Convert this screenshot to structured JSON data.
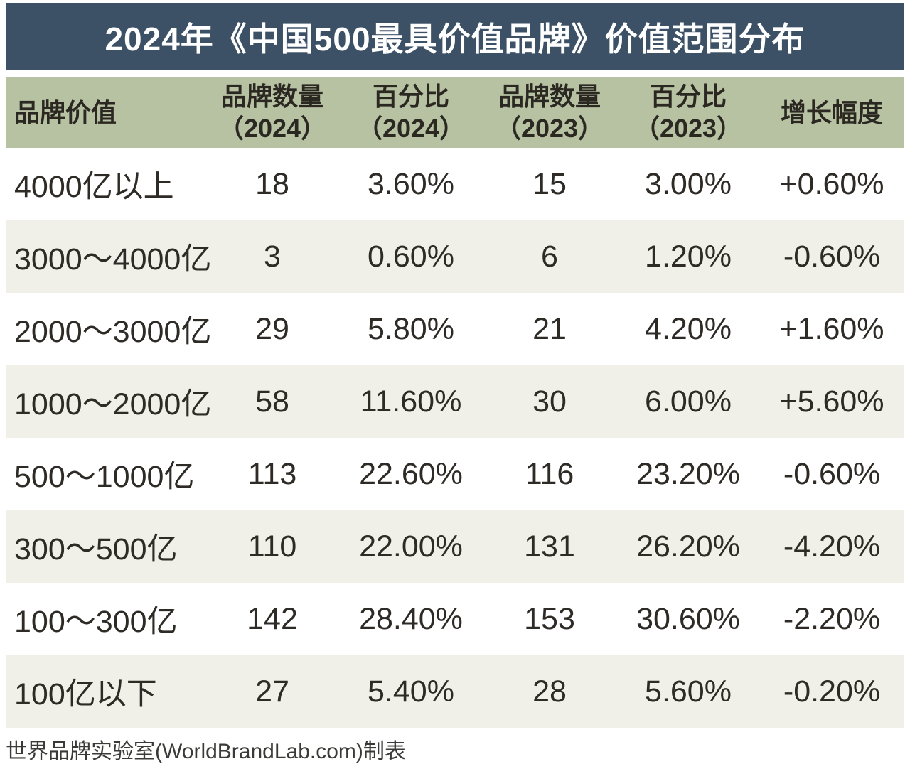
{
  "title": "2024年《中国500最具价值品牌》价值范围分布",
  "table": {
    "columns": [
      {
        "label": "品牌价值",
        "sublabel": ""
      },
      {
        "label": "品牌数量",
        "sublabel": "（2024）"
      },
      {
        "label": "百分比",
        "sublabel": "（2024）"
      },
      {
        "label": "品牌数量",
        "sublabel": "（2023）"
      },
      {
        "label": "百分比",
        "sublabel": "（2023）"
      },
      {
        "label": "增长幅度",
        "sublabel": ""
      }
    ],
    "rows": [
      {
        "range": "4000亿以上",
        "count_2024": "18",
        "pct_2024": "3.60%",
        "count_2023": "15",
        "pct_2023": "3.00%",
        "growth": "+0.60%"
      },
      {
        "range": "3000～4000亿",
        "count_2024": "3",
        "pct_2024": "0.60%",
        "count_2023": "6",
        "pct_2023": "1.20%",
        "growth": "-0.60%"
      },
      {
        "range": "2000～3000亿",
        "count_2024": "29",
        "pct_2024": "5.80%",
        "count_2023": "21",
        "pct_2023": "4.20%",
        "growth": "+1.60%"
      },
      {
        "range": "1000～2000亿",
        "count_2024": "58",
        "pct_2024": "11.60%",
        "count_2023": "30",
        "pct_2023": "6.00%",
        "growth": "+5.60%"
      },
      {
        "range": "500～1000亿",
        "count_2024": "113",
        "pct_2024": "22.60%",
        "count_2023": "116",
        "pct_2023": "23.20%",
        "growth": "-0.60%"
      },
      {
        "range": "300～500亿",
        "count_2024": "110",
        "pct_2024": "22.00%",
        "count_2023": "131",
        "pct_2023": "26.20%",
        "growth": "-4.20%"
      },
      {
        "range": "100～300亿",
        "count_2024": "142",
        "pct_2024": "28.40%",
        "count_2023": "153",
        "pct_2023": "30.60%",
        "growth": "-2.20%"
      },
      {
        "range": "100亿以下",
        "count_2024": "27",
        "pct_2024": "5.40%",
        "count_2023": "28",
        "pct_2023": "5.60%",
        "growth": "-0.20%"
      }
    ]
  },
  "footer": {
    "credit": "世界品牌实验室(WorldBrandLab.com)制表"
  },
  "colors": {
    "title_bg": "#3d5166",
    "title_text": "#ffffff",
    "header_bg": "#b7c2a3",
    "row_bg": "#ffffff",
    "row_alt_bg": "#f0f0e9",
    "text": "#2e2a25"
  },
  "chart_data": {
    "type": "table",
    "title": "2024年《中国500最具价值品牌》价值范围分布",
    "columns": [
      "品牌价值",
      "品牌数量（2024）",
      "百分比（2024）",
      "品牌数量（2023）",
      "百分比（2023）",
      "增长幅度"
    ],
    "rows": [
      [
        "4000亿以上",
        18,
        "3.60%",
        15,
        "3.00%",
        "+0.60%"
      ],
      [
        "3000～4000亿",
        3,
        "0.60%",
        6,
        "1.20%",
        "-0.60%"
      ],
      [
        "2000～3000亿",
        29,
        "5.80%",
        21,
        "4.20%",
        "+1.60%"
      ],
      [
        "1000～2000亿",
        58,
        "11.60%",
        30,
        "6.00%",
        "+5.60%"
      ],
      [
        "500～1000亿",
        113,
        "22.60%",
        116,
        "23.20%",
        "-0.60%"
      ],
      [
        "300～500亿",
        110,
        "22.00%",
        131,
        "26.20%",
        "-4.20%"
      ],
      [
        "100～300亿",
        142,
        "28.40%",
        153,
        "30.60%",
        "-2.20%"
      ],
      [
        "100亿以下",
        27,
        "5.40%",
        28,
        "5.60%",
        "-0.20%"
      ]
    ],
    "source_note": "世界品牌实验室(WorldBrandLab.com)制表"
  }
}
